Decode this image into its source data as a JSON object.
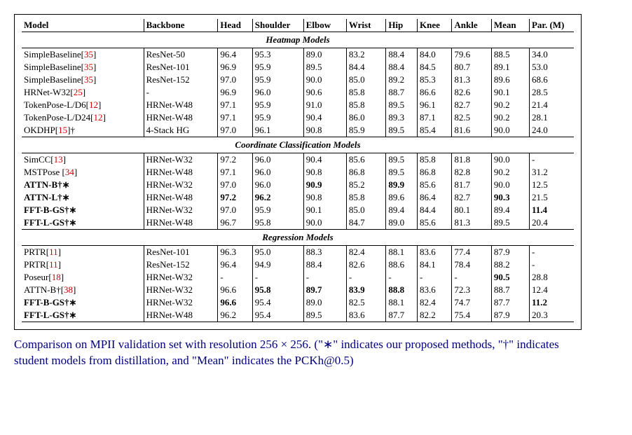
{
  "headers": [
    "Model",
    "Backbone",
    "Head",
    "Shoulder",
    "Elbow",
    "Wrist",
    "Hip",
    "Knee",
    "Ankle",
    "Mean",
    "Par. (M)"
  ],
  "sections": [
    {
      "title": "Heatmap Models",
      "rows": [
        {
          "model": {
            "name": "SimpleBaseline",
            "ref": "35",
            "bold": false
          },
          "cells": [
            "ResNet-50",
            "96.4",
            "95.3",
            "89.0",
            "83.2",
            "88.4",
            "84.0",
            "79.6",
            "88.5",
            "34.0"
          ],
          "bold": []
        },
        {
          "model": {
            "name": "SimpleBaseline",
            "ref": "35",
            "bold": false
          },
          "cells": [
            "ResNet-101",
            "96.9",
            "95.9",
            "89.5",
            "84.4",
            "88.4",
            "84.5",
            "80.7",
            "89.1",
            "53.0"
          ],
          "bold": []
        },
        {
          "model": {
            "name": "SimpleBaseline",
            "ref": "35",
            "bold": false
          },
          "cells": [
            "ResNet-152",
            "97.0",
            "95.9",
            "90.0",
            "85.0",
            "89.2",
            "85.3",
            "81.3",
            "89.6",
            "68.6"
          ],
          "bold": []
        },
        {
          "model": {
            "name": "HRNet-W32",
            "ref": "25",
            "bold": false
          },
          "cells": [
            "-",
            "96.9",
            "96.0",
            "90.6",
            "85.8",
            "88.7",
            "86.6",
            "82.6",
            "90.1",
            "28.5"
          ],
          "bold": []
        },
        {
          "model": {
            "name": "TokenPose-L/D6",
            "ref": "12",
            "bold": false
          },
          "cells": [
            "HRNet-W48",
            "97.1",
            "95.9",
            "91.0",
            "85.8",
            "89.5",
            "96.1",
            "82.7",
            "90.2",
            "21.4"
          ],
          "bold": []
        },
        {
          "model": {
            "name": "TokenPose-L/D24",
            "ref": "12",
            "bold": false
          },
          "cells": [
            "HRNet-W48",
            "97.1",
            "95.9",
            "90.4",
            "86.0",
            "89.3",
            "87.1",
            "82.5",
            "90.2",
            "28.1"
          ],
          "bold": []
        },
        {
          "model": {
            "name": "OKDHP",
            "ref": "15",
            "suffix": "†",
            "bold": false
          },
          "cells": [
            "4-Stack HG",
            "97.0",
            "96.1",
            "90.8",
            "85.9",
            "89.5",
            "85.4",
            "81.6",
            "90.0",
            "24.0"
          ],
          "bold": []
        }
      ]
    },
    {
      "title": "Coordinate Classification Models",
      "rows": [
        {
          "model": {
            "name": "SimCC",
            "ref": "13",
            "bold": false
          },
          "cells": [
            "HRNet-W32",
            "97.2",
            "96.0",
            "90.4",
            "85.6",
            "89.5",
            "85.8",
            "81.8",
            "90.0",
            "-"
          ],
          "bold": []
        },
        {
          "model": {
            "name": "MSTPose ",
            "ref": "34",
            "bold": false
          },
          "cells": [
            "HRNet-W48",
            "97.1",
            "96.0",
            "90.8",
            "86.8",
            "89.5",
            "86.8",
            "82.8",
            "90.2",
            "31.2"
          ],
          "bold": []
        },
        {
          "model": {
            "name": "ATTN-B",
            "suffix": "†∗",
            "bold": true
          },
          "cells": [
            "HRNet-W32",
            "97.0",
            "96.0",
            "90.9",
            "85.2",
            "89.9",
            "85.6",
            "81.7",
            "90.0",
            "12.5"
          ],
          "bold": [
            3,
            5
          ]
        },
        {
          "model": {
            "name": "ATTN-L",
            "suffix": "†∗",
            "bold": true
          },
          "cells": [
            "HRNet-W48",
            "97.2",
            "96.2",
            "90.8",
            "85.8",
            "89.6",
            "86.4",
            "82.7",
            "90.3",
            "21.5"
          ],
          "bold": [
            1,
            2,
            8
          ]
        },
        {
          "model": {
            "name": "FFT-B-GS",
            "suffix": "†∗",
            "bold": true
          },
          "cells": [
            "HRNet-W32",
            "97.0",
            "95.9",
            "90.1",
            "85.0",
            "89.4",
            "84.4",
            "80.1",
            "89.4",
            "11.4"
          ],
          "bold": [
            9
          ]
        },
        {
          "model": {
            "name": "FFT-L-GS",
            "suffix": "†∗",
            "bold": true
          },
          "cells": [
            "HRNet-W48",
            "96.7",
            "95.8",
            "90.0",
            "84.7",
            "89.0",
            "85.6",
            "81.3",
            "89.5",
            "20.4"
          ],
          "bold": []
        }
      ]
    },
    {
      "title": "Regression Models",
      "rows": [
        {
          "model": {
            "name": "PRTR",
            "ref": "11",
            "bold": false
          },
          "cells": [
            "ResNet-101",
            "96.3",
            "95.0",
            "88.3",
            "82.4",
            "88.1",
            "83.6",
            "77.4",
            "87.9",
            "-"
          ],
          "bold": []
        },
        {
          "model": {
            "name": "PRTR",
            "ref": "11",
            "bold": false
          },
          "cells": [
            "ResNet-152",
            "96.4",
            "94.9",
            "88.4",
            "82.6",
            "88.6",
            "84.1",
            "78.4",
            "88.2",
            "-"
          ],
          "bold": []
        },
        {
          "model": {
            "name": "Poseur",
            "ref": "18",
            "bold": false
          },
          "cells": [
            "HRNet-W32",
            "-",
            "-",
            "-",
            "-",
            "-",
            "-",
            "-",
            "90.5",
            "28.8"
          ],
          "bold": [
            8
          ]
        },
        {
          "model": {
            "name": "ATTN-B†",
            "ref": "38",
            "bold": false
          },
          "cells": [
            "HRNet-W32",
            "96.6",
            "95.8",
            "89.7",
            "83.9",
            "88.8",
            "83.6",
            "72.3",
            "88.7",
            "12.4"
          ],
          "bold": [
            2,
            3,
            4,
            5
          ]
        },
        {
          "model": {
            "name": "FFT-B-GS",
            "suffix": "†∗",
            "bold": true
          },
          "cells": [
            "HRNet-W32",
            "96.6",
            "95.4",
            "89.0",
            "82.5",
            "88.1",
            "82.4",
            "74.7",
            "87.7",
            "11.2"
          ],
          "bold": [
            1,
            9
          ]
        },
        {
          "model": {
            "name": "FFT-L-GS",
            "suffix": "†∗",
            "bold": true
          },
          "cells": [
            "HRNet-W48",
            "96.2",
            "95.4",
            "89.5",
            "83.6",
            "87.7",
            "82.2",
            "75.4",
            "87.9",
            "20.3"
          ],
          "bold": []
        }
      ]
    }
  ],
  "caption": "Comparison on MPII validation set with resolution 256 × 256.  (\"∗\" indicates our proposed methods, \"†\" indicates student models from distillation, and \"Mean\" indicates the PCKh@0.5)"
}
